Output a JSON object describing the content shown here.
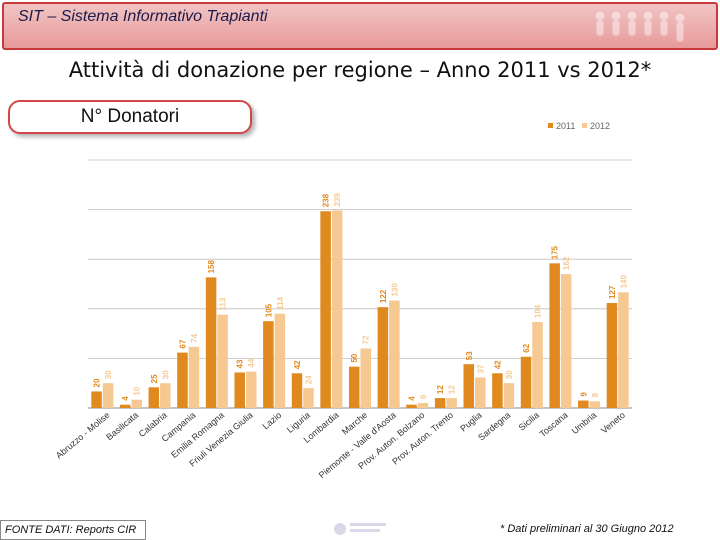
{
  "header": {
    "system_name": "SIT – Sistema Informativo Trapianti",
    "title": "Attività di donazione per regione – Anno 2011 vs 2012*",
    "subtitle": "N° Donatori"
  },
  "footer": {
    "source": "FONTE DATI: Reports CIR",
    "note": "* Dati preliminari al 30 Giugno 2012"
  },
  "colors": {
    "series_2011": "#e0891f",
    "series_2012": "#f5c991",
    "banner_border": "#c93a3a",
    "gridline": "#c0c0c0"
  },
  "chart_data": {
    "type": "bar",
    "title": "N° Donatori",
    "legend_position": "top-right",
    "categories": [
      "Abruzzo - Molise",
      "Basilicata",
      "Calabria",
      "Campania",
      "Emilia Romagna",
      "Friuli Venezia Giulia",
      "Lazio",
      "Liguria",
      "Lombardia",
      "Marche",
      "Piemonte - Valle d'Aosta",
      "Prov. Auton. Bolzano",
      "Prov. Auton. Trento",
      "Puglia",
      "Sardegna",
      "Sicilia",
      "Toscana",
      "Umbria",
      "Veneto"
    ],
    "series": [
      {
        "name": "2011",
        "values": [
          20,
          4,
          25,
          67,
          158,
          43,
          105,
          42,
          238,
          50,
          122,
          4,
          12,
          53,
          42,
          62,
          175,
          9,
          127
        ]
      },
      {
        "name": "2012",
        "values": [
          30,
          10,
          30,
          74,
          113,
          44,
          114,
          24,
          239,
          72,
          130,
          6,
          12,
          37,
          30,
          104,
          162,
          8,
          140
        ]
      }
    ],
    "ylim": [
      0,
      300
    ],
    "gridlines": [
      0,
      60,
      120,
      180,
      240,
      300
    ],
    "xlabel": "",
    "ylabel": ""
  }
}
